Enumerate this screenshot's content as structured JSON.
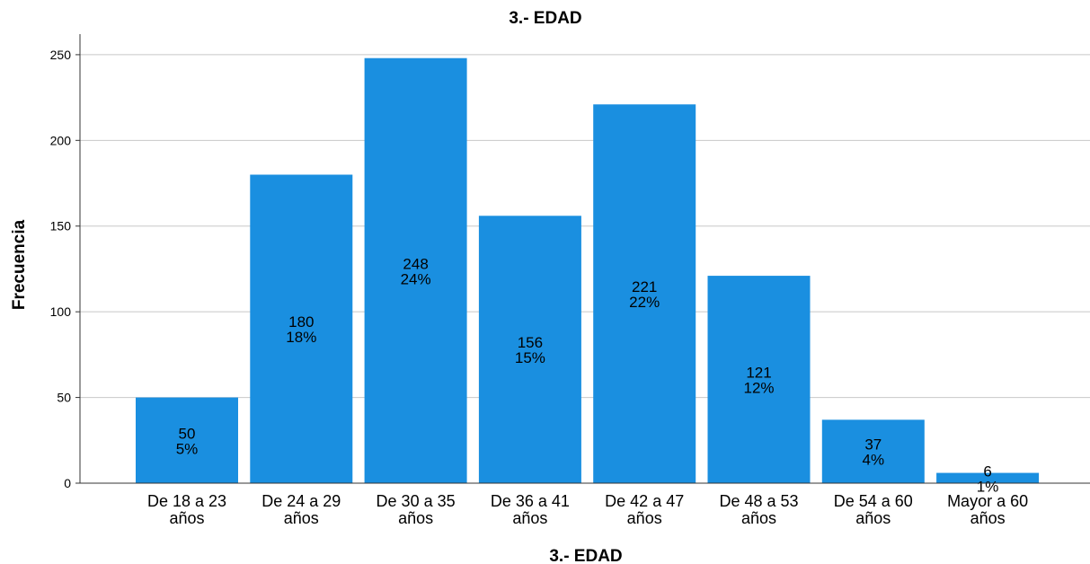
{
  "chart_data": {
    "type": "bar",
    "title": "3.- EDAD",
    "xlabel": "3.- EDAD",
    "ylabel": "Frecuencia",
    "ylim": [
      0,
      262
    ],
    "yticks": [
      0,
      50,
      100,
      150,
      200,
      250
    ],
    "grid": true,
    "bar_color": "#1a8fe0",
    "categories": [
      [
        "De 18 a 23",
        "años"
      ],
      [
        "De 24 a 29",
        "años"
      ],
      [
        "De 30 a 35",
        "años"
      ],
      [
        "De 36 a 41",
        "años"
      ],
      [
        "De 42 a 47",
        "años"
      ],
      [
        "De 48 a 53",
        "años"
      ],
      [
        "De 54 a 60",
        "años"
      ],
      [
        "Mayor a 60",
        "años"
      ]
    ],
    "values": [
      50,
      180,
      248,
      156,
      221,
      121,
      37,
      6
    ],
    "percent_labels": [
      "5%",
      "18%",
      "24%",
      "15%",
      "22%",
      "12%",
      "4%",
      "1%"
    ]
  }
}
